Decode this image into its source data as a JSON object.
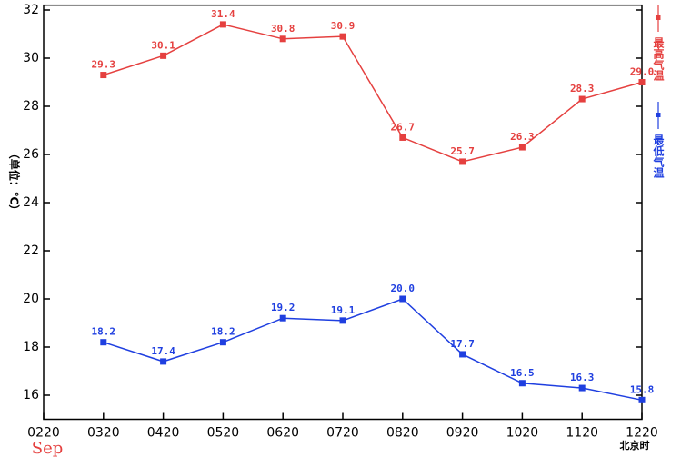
{
  "chart_data": {
    "type": "line",
    "y_label": "（单位：℃）",
    "x_sublabel": "Sep",
    "x_unit_label": "北京时",
    "categories": [
      "0220",
      "0320",
      "0420",
      "0520",
      "0620",
      "0720",
      "0820",
      "0920",
      "1020",
      "1120",
      "1220"
    ],
    "series": [
      {
        "name": "最高气温",
        "color": "#e5403f",
        "values": [
          null,
          29.3,
          30.1,
          31.4,
          30.8,
          30.9,
          26.7,
          25.7,
          26.3,
          28.3,
          29.0
        ],
        "value_labels": [
          null,
          "29.3",
          "30.1",
          "31.4",
          "30.8",
          "30.9",
          "26.7",
          "25.7",
          "26.3",
          "28.3",
          "29.0"
        ]
      },
      {
        "name": "最低气温",
        "color": "#1f3fe0",
        "values": [
          null,
          18.2,
          17.4,
          18.2,
          19.2,
          19.1,
          20.0,
          17.7,
          16.5,
          16.3,
          15.8
        ],
        "value_labels": [
          null,
          "18.2",
          "17.4",
          "18.2",
          "19.2",
          "19.1",
          "20.0",
          "17.7",
          "16.5",
          "16.3",
          "15.8"
        ]
      }
    ],
    "ylim": [
      15,
      32.2
    ],
    "yticks": [
      16,
      18,
      20,
      22,
      24,
      26,
      28,
      30,
      32
    ],
    "legend": "right",
    "grid": false
  }
}
